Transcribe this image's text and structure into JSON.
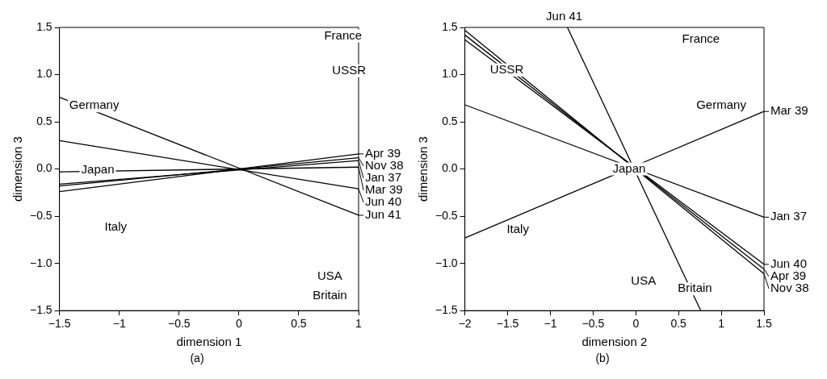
{
  "chart_data": [
    {
      "type": "line",
      "xlabel": "dimension 1",
      "ylabel": "dimension 3",
      "marker": "none",
      "legend": "right",
      "xlim": [
        -1.5,
        1
      ],
      "ylim": [
        -1.5,
        1.5
      ],
      "xticks": [
        {
          "value": -1.5,
          "label": "−1.5"
        },
        {
          "value": -1,
          "label": "−1"
        },
        {
          "value": -0.5,
          "label": "−0.5"
        },
        {
          "value": 0,
          "label": "0"
        },
        {
          "value": 0.5,
          "label": "0.5"
        },
        {
          "value": 1,
          "label": "1"
        }
      ],
      "yticks": [
        {
          "value": -1.5,
          "label": "−1.5"
        },
        {
          "value": -1,
          "label": "−1.0"
        },
        {
          "value": -0.5,
          "label": "−0.5"
        },
        {
          "value": 0,
          "label": "0.0"
        },
        {
          "value": 0.5,
          "label": "0.5"
        },
        {
          "value": 1,
          "label": "1.0"
        },
        {
          "value": 1.5,
          "label": "1.5"
        }
      ],
      "series": [
        {
          "name": "Apr 39",
          "color": "#000000",
          "x": [
            -1.5,
            1
          ],
          "values": [
            -0.24,
            0.16
          ]
        },
        {
          "name": "Nov 38",
          "color": "#000000",
          "x": [
            -1.5,
            1
          ],
          "values": [
            -0.18,
            0.12
          ]
        },
        {
          "name": "Jan 37",
          "color": "#000000",
          "x": [
            -1.5,
            1
          ],
          "values": [
            -0.16,
            0.09
          ]
        },
        {
          "name": "Mar 39",
          "color": "#000000",
          "x": [
            -1.5,
            1
          ],
          "values": [
            -0.03,
            0.02
          ]
        },
        {
          "name": "Jun 40",
          "color": "#000000",
          "x": [
            -1.5,
            1
          ],
          "values": [
            0.3,
            -0.21
          ]
        },
        {
          "name": "Jun 41",
          "color": "#000000",
          "x": [
            -1.5,
            1
          ],
          "values": [
            0.76,
            -0.49
          ]
        }
      ],
      "annotations": [
        "France",
        "USSR",
        "Germany",
        "Japan",
        "Italy",
        "USA",
        "Britain",
        "(a)"
      ]
    },
    {
      "type": "line",
      "xlabel": "dimension 2",
      "ylabel": "dimension 3",
      "marker": "none",
      "legend": "right",
      "xlim": [
        -2,
        1.5
      ],
      "ylim": [
        -1.5,
        1.5
      ],
      "xticks": [
        {
          "value": -2,
          "label": "−2"
        },
        {
          "value": -1.5,
          "label": "−1.5"
        },
        {
          "value": -1,
          "label": "−1"
        },
        {
          "value": -0.5,
          "label": "−0.5"
        },
        {
          "value": 0,
          "label": "0"
        },
        {
          "value": 0.5,
          "label": "0.5"
        },
        {
          "value": 1,
          "label": "1"
        },
        {
          "value": 1.5,
          "label": "1.5"
        }
      ],
      "yticks": [
        {
          "value": -1.5,
          "label": "−1.5"
        },
        {
          "value": -1,
          "label": "−1.0"
        },
        {
          "value": -0.5,
          "label": "−0.5"
        },
        {
          "value": 0,
          "label": "0.0"
        },
        {
          "value": 0.5,
          "label": "0.5"
        },
        {
          "value": 1,
          "label": "1.0"
        },
        {
          "value": 1.5,
          "label": "1.5"
        }
      ],
      "series": [
        {
          "name": "Jun 41",
          "color": "#000000",
          "x": [
            0.76,
            -0.8
          ],
          "values": [
            -1.5,
            1.5
          ]
        },
        {
          "name": "Mar 39",
          "color": "#000000",
          "x": [
            -2,
            1.5
          ],
          "values": [
            -0.73,
            0.61
          ]
        },
        {
          "name": "Jan 37",
          "color": "#000000",
          "x": [
            -2,
            1.5
          ],
          "values": [
            0.68,
            -0.51
          ]
        },
        {
          "name": "Jun 40",
          "color": "#000000",
          "x": [
            -2,
            1.5
          ],
          "values": [
            1.37,
            -1.01
          ]
        },
        {
          "name": "Apr 39",
          "color": "#000000",
          "x": [
            -2,
            1.5
          ],
          "values": [
            1.42,
            -1.06
          ]
        },
        {
          "name": "Nov 38",
          "color": "#000000",
          "x": [
            -2,
            1.5
          ],
          "values": [
            1.47,
            -1.11
          ]
        }
      ],
      "annotations": [
        "France",
        "USSR",
        "Germany",
        "Japan",
        "Italy",
        "USA",
        "Britain",
        "(b)"
      ]
    }
  ]
}
